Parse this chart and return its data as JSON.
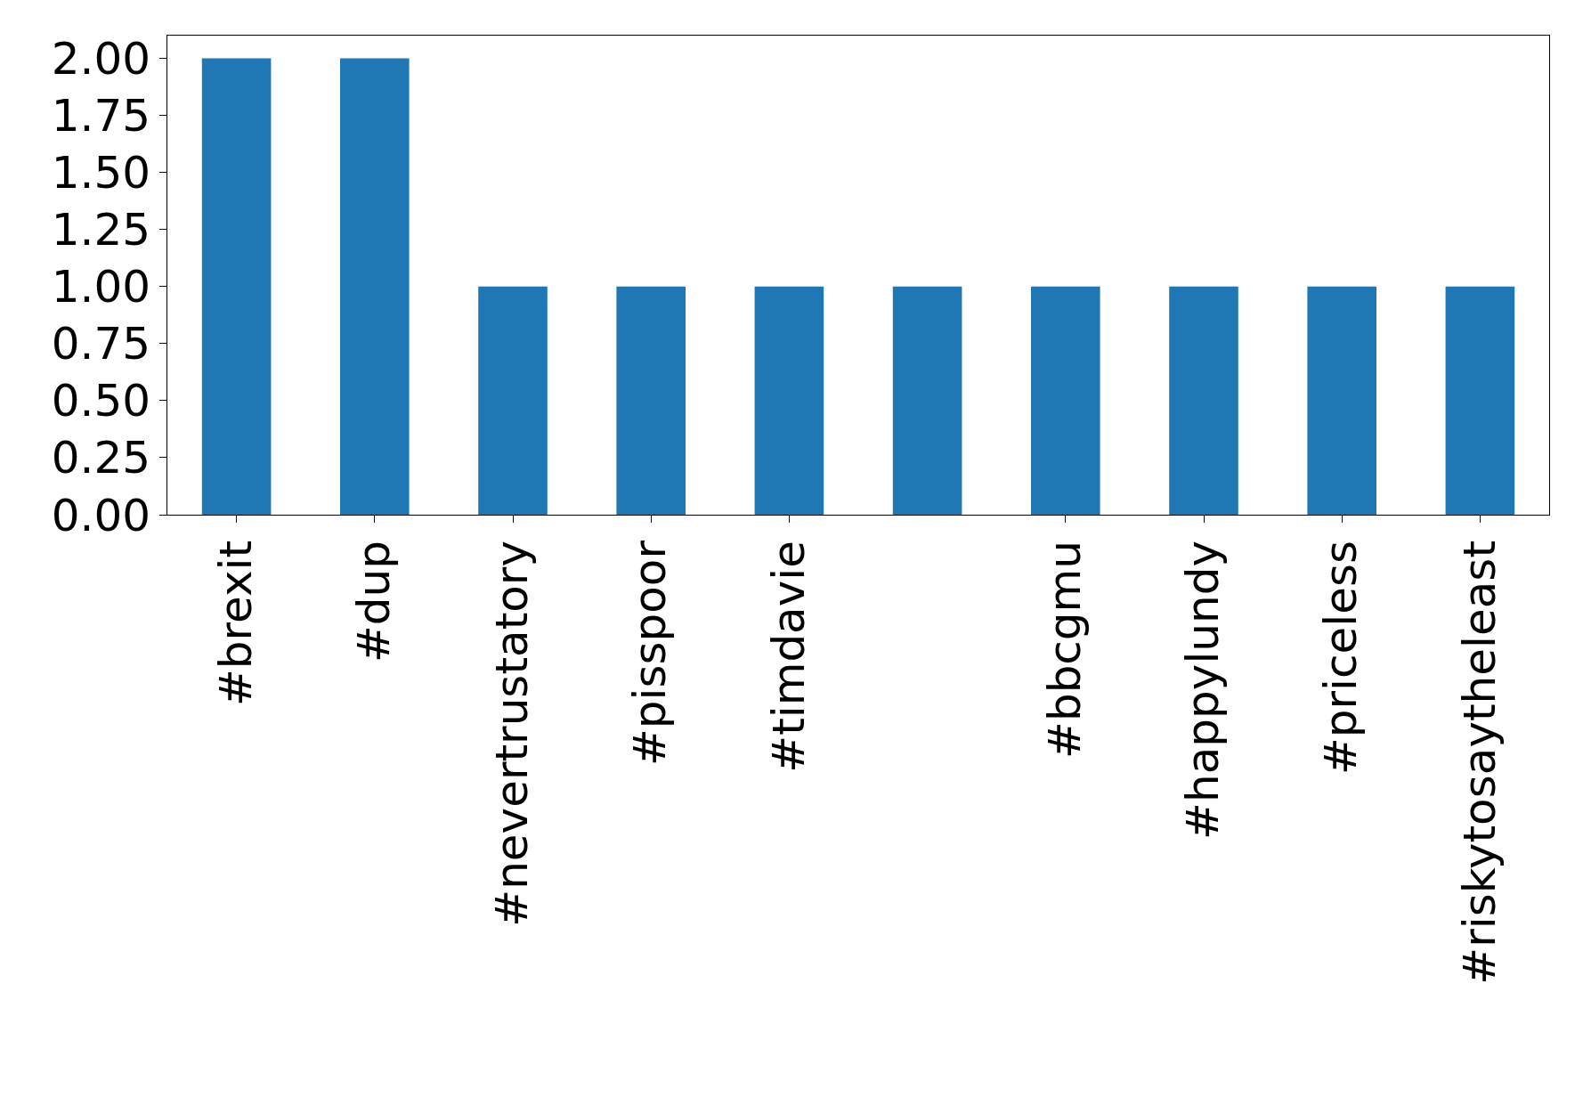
{
  "chart_data": {
    "type": "bar",
    "categories": [
      "#brexit",
      "#dup",
      "#nevertrustatory",
      "#pisspoor",
      "#timdavie",
      null,
      "#bbcgmu",
      "#happylundy",
      "#priceless",
      "#riskytosaytheleast"
    ],
    "values": [
      2,
      2,
      1,
      1,
      1,
      1,
      1,
      1,
      1,
      1
    ],
    "color": "#1f77b4",
    "ylim": [
      0,
      2.1
    ],
    "yticks": [
      {
        "value": 0,
        "label": "0.00"
      },
      {
        "value": 0.25,
        "label": "0.25"
      },
      {
        "value": 0.5,
        "label": "0.50"
      },
      {
        "value": 0.75,
        "label": "0.75"
      },
      {
        "value": 1,
        "label": "1.00"
      },
      {
        "value": 1.25,
        "label": "1.25"
      },
      {
        "value": 1.5,
        "label": "1.50"
      },
      {
        "value": 1.75,
        "label": "1.75"
      },
      {
        "value": 2,
        "label": "2.00"
      }
    ],
    "grid": false
  }
}
